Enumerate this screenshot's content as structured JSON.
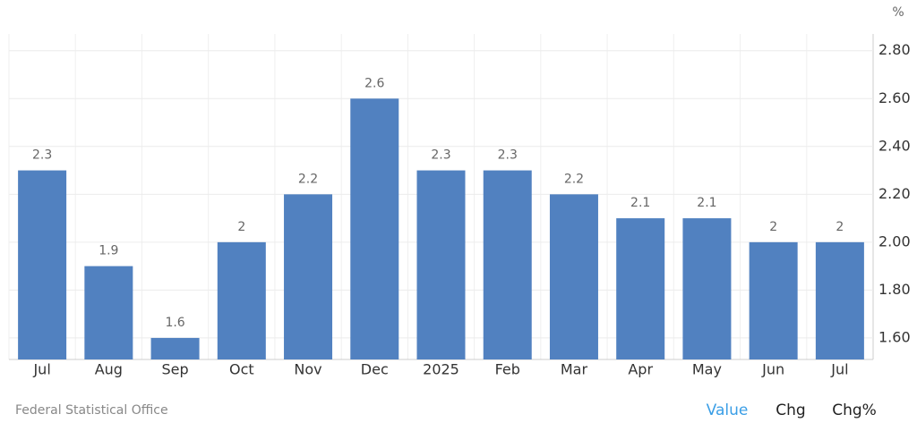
{
  "chart_data": {
    "type": "bar",
    "unit": "%",
    "categories": [
      "Jul",
      "Aug",
      "Sep",
      "Oct",
      "Nov",
      "Dec",
      "2025",
      "Feb",
      "Mar",
      "Apr",
      "May",
      "Jun",
      "Jul"
    ],
    "values": [
      2.3,
      1.9,
      1.6,
      2,
      2.2,
      2.6,
      2.3,
      2.3,
      2.2,
      2.1,
      2.1,
      2,
      2
    ],
    "color": "#5181c0",
    "ylim": [
      1.51,
      2.87
    ],
    "yticks": [
      {
        "value": 1.6,
        "label": "1.60"
      },
      {
        "value": 1.8,
        "label": "1.80"
      },
      {
        "value": 2.0,
        "label": "2.00"
      },
      {
        "value": 2.2,
        "label": "2.20"
      },
      {
        "value": 2.4,
        "label": "2.40"
      },
      {
        "value": 2.6,
        "label": "2.60"
      },
      {
        "value": 2.8,
        "label": "2.80"
      }
    ],
    "grid": true
  },
  "source": "Federal Statistical Office",
  "buttons": [
    "Value",
    "Chg",
    "Chg%"
  ]
}
